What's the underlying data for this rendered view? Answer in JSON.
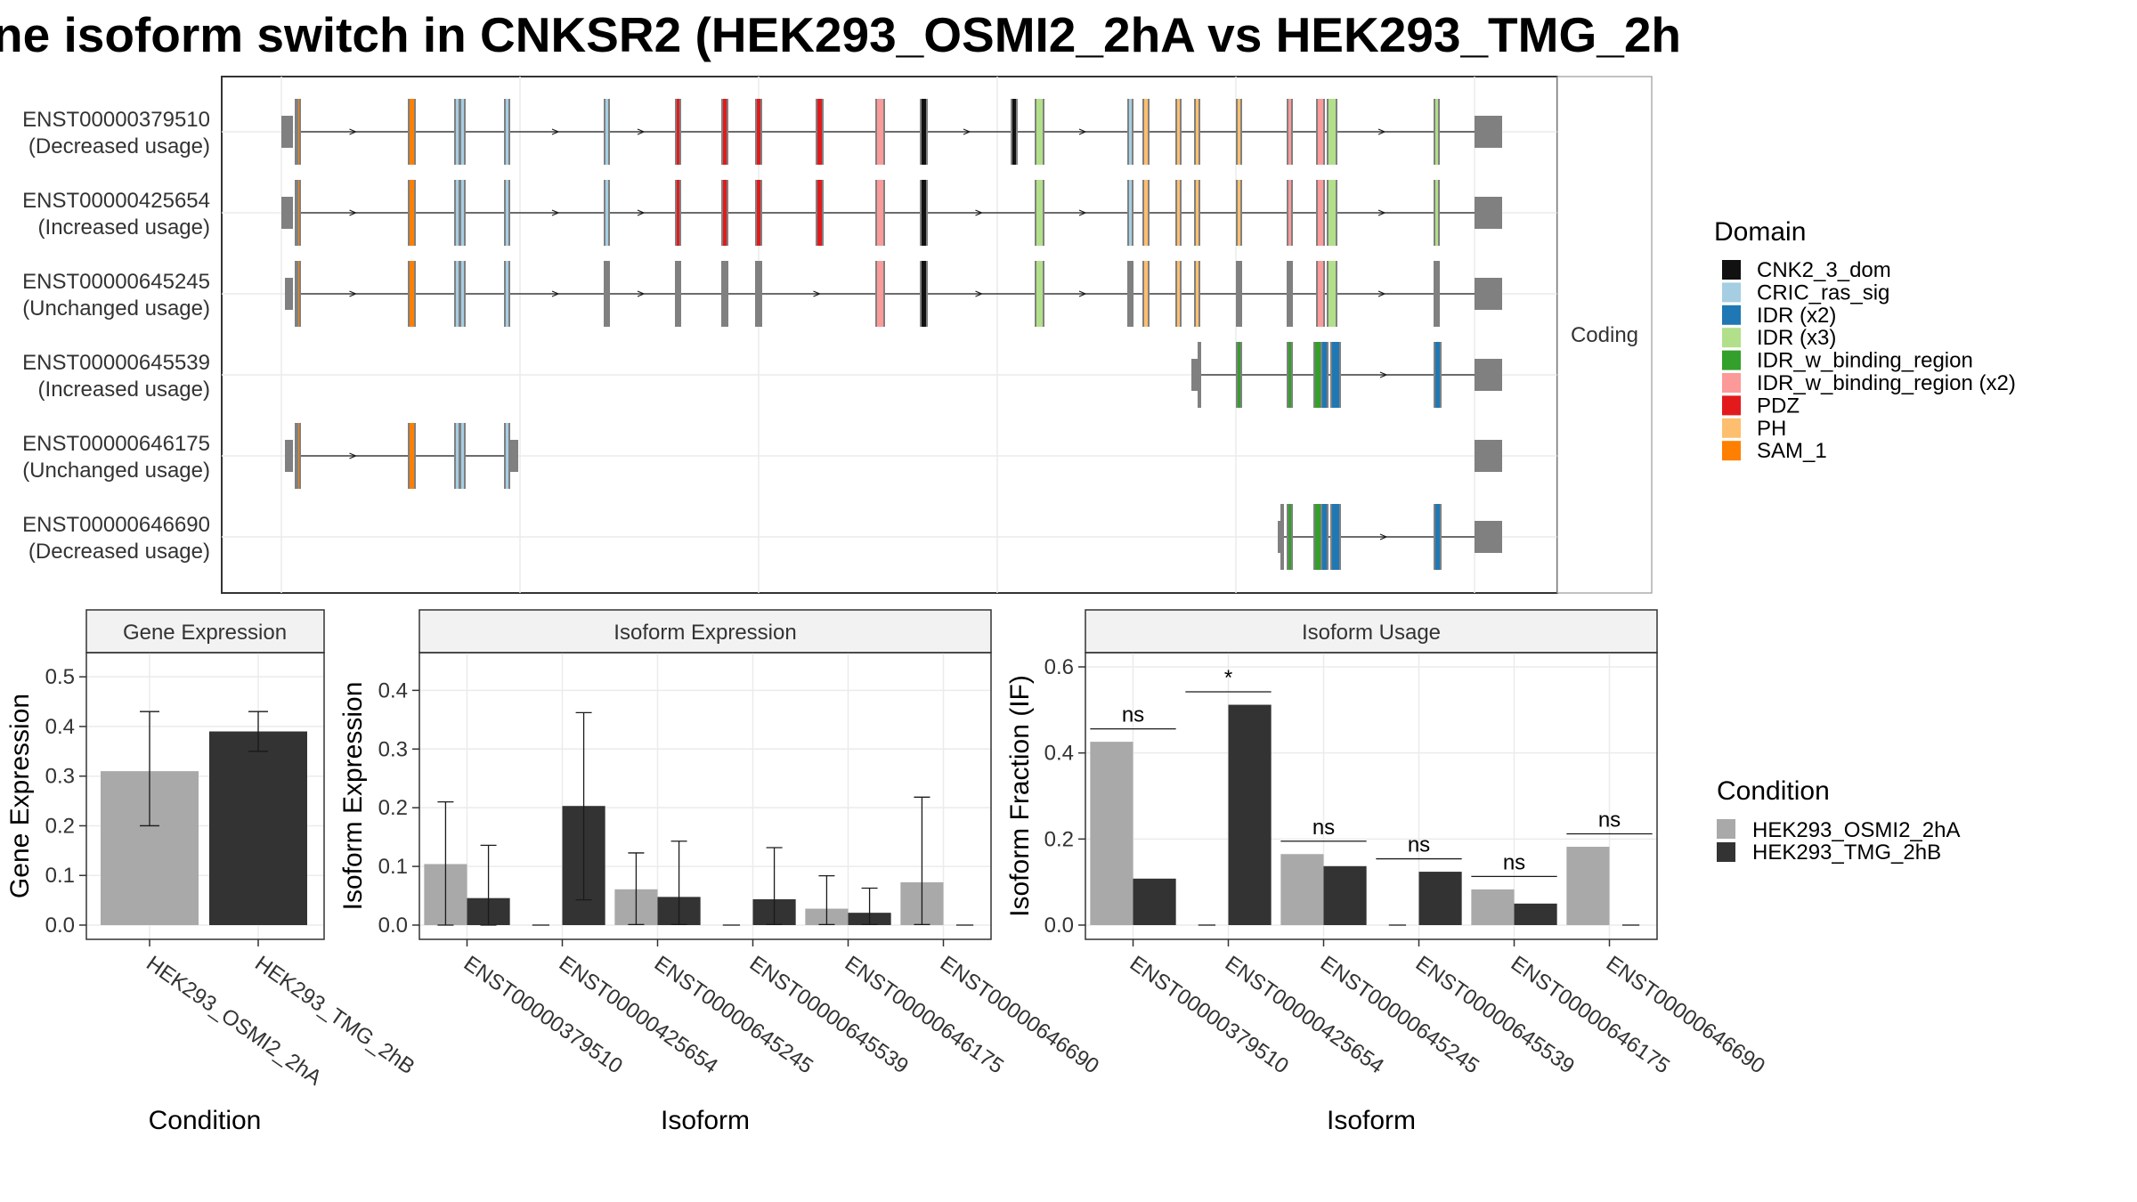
{
  "title": "ne isoform switch in CNKSR2 (HEK293_OSMI2_2hA vs HEK293_TMG_2h",
  "colors": {
    "cond_a": "#a9a9a9",
    "cond_b": "#333333",
    "exon": "#808080"
  },
  "chart_data": [
    {
      "type": "isoform-structure",
      "strip_label": "Coding",
      "legend_title": "Domain",
      "domains": [
        {
          "name": "CNK2_3_dom",
          "color": "#111111"
        },
        {
          "name": "CRIC_ras_sig",
          "color": "#a6cee3"
        },
        {
          "name": "IDR (x2)",
          "color": "#1f78b4"
        },
        {
          "name": "IDR (x3)",
          "color": "#b2df8a"
        },
        {
          "name": "IDR_w_binding_region",
          "color": "#33a02c"
        },
        {
          "name": "IDR_w_binding_region (x2)",
          "color": "#fb9a99"
        },
        {
          "name": "PDZ",
          "color": "#e31a1c"
        },
        {
          "name": "PH",
          "color": "#fdbf6f"
        },
        {
          "name": "SAM_1",
          "color": "#ff7f00"
        }
      ],
      "transcripts": [
        {
          "id": "ENST00000379510",
          "status": "(Decreased usage)"
        },
        {
          "id": "ENST00000425654",
          "status": "(Increased usage)"
        },
        {
          "id": "ENST00000645245",
          "status": "(Unchanged usage)"
        },
        {
          "id": "ENST00000645539",
          "status": "(Increased usage)"
        },
        {
          "id": "ENST00000646175",
          "status": "(Unchanged usage)"
        },
        {
          "id": "ENST00000646690",
          "status": "(Decreased usage)"
        }
      ]
    },
    {
      "type": "bar",
      "title": "Gene Expression",
      "xlabel": "Condition",
      "ylabel": "Gene Expression",
      "categories": [
        "HEK293_OSMI2_2hA",
        "HEK293_TMG_2hB"
      ],
      "values": [
        0.31,
        0.39
      ],
      "err_low": [
        0.2,
        0.35
      ],
      "err_high": [
        0.43,
        0.43
      ],
      "ylim": [
        0,
        0.52
      ],
      "yticks": [
        0.0,
        0.1,
        0.2,
        0.3,
        0.4,
        0.5
      ],
      "ytick_labels": [
        "0.0",
        "0.1",
        "0.2",
        "0.3",
        "0.4",
        "0.5"
      ]
    },
    {
      "type": "bar",
      "title": "Isoform Expression",
      "xlabel": "Isoform",
      "ylabel": "Isoform Expression",
      "categories": [
        "ENST00000379510",
        "ENST00000425654",
        "ENST00000645245",
        "ENST00000645539",
        "ENST00000646175",
        "ENST00000646690"
      ],
      "series": [
        {
          "name": "HEK293_OSMI2_2hA",
          "values": [
            0.104,
            0,
            0.061,
            0,
            0.028,
            0.073
          ],
          "err_low": [
            0,
            null,
            0.001,
            null,
            0.001,
            0.001
          ],
          "err_high": [
            0.21,
            null,
            0.123,
            null,
            0.084,
            0.218
          ]
        },
        {
          "name": "HEK293_TMG_2hB",
          "values": [
            0.046,
            0.203,
            0.048,
            0.044,
            0.021,
            0
          ],
          "err_low": [
            0,
            0.043,
            0.001,
            0.001,
            0.001,
            null
          ],
          "err_high": [
            0.136,
            0.362,
            0.143,
            0.132,
            0.063,
            null
          ]
        }
      ],
      "ylim": [
        0,
        0.44
      ],
      "yticks": [
        0.0,
        0.1,
        0.2,
        0.3,
        0.4
      ],
      "ytick_labels": [
        "0.0",
        "0.1",
        "0.2",
        "0.3",
        "0.4"
      ]
    },
    {
      "type": "bar",
      "title": "Isoform Usage",
      "xlabel": "Isoform",
      "ylabel": "Isoform Fraction (IF)",
      "categories": [
        "ENST00000379510",
        "ENST00000425654",
        "ENST00000645245",
        "ENST00000645539",
        "ENST00000646175",
        "ENST00000646690"
      ],
      "series": [
        {
          "name": "HEK293_OSMI2_2hA",
          "values": [
            0.426,
            0,
            0.165,
            0,
            0.083,
            0.182
          ]
        },
        {
          "name": "HEK293_TMG_2hB",
          "values": [
            0.108,
            0.512,
            0.137,
            0.124,
            0.05,
            0
          ]
        }
      ],
      "significance": [
        "ns",
        "*",
        "ns",
        "ns",
        "ns",
        "ns"
      ],
      "sig_y": [
        0.456,
        0.542,
        0.195,
        0.154,
        0.113,
        0.212
      ],
      "ylim": [
        0,
        0.6
      ],
      "yticks": [
        0.0,
        0.2,
        0.4,
        0.6
      ],
      "ytick_labels": [
        "0.0",
        "0.2",
        "0.4",
        "0.6"
      ]
    }
  ],
  "legend_condition": {
    "title": "Condition",
    "items": [
      "HEK293_OSMI2_2hA",
      "HEK293_TMG_2hB"
    ]
  }
}
